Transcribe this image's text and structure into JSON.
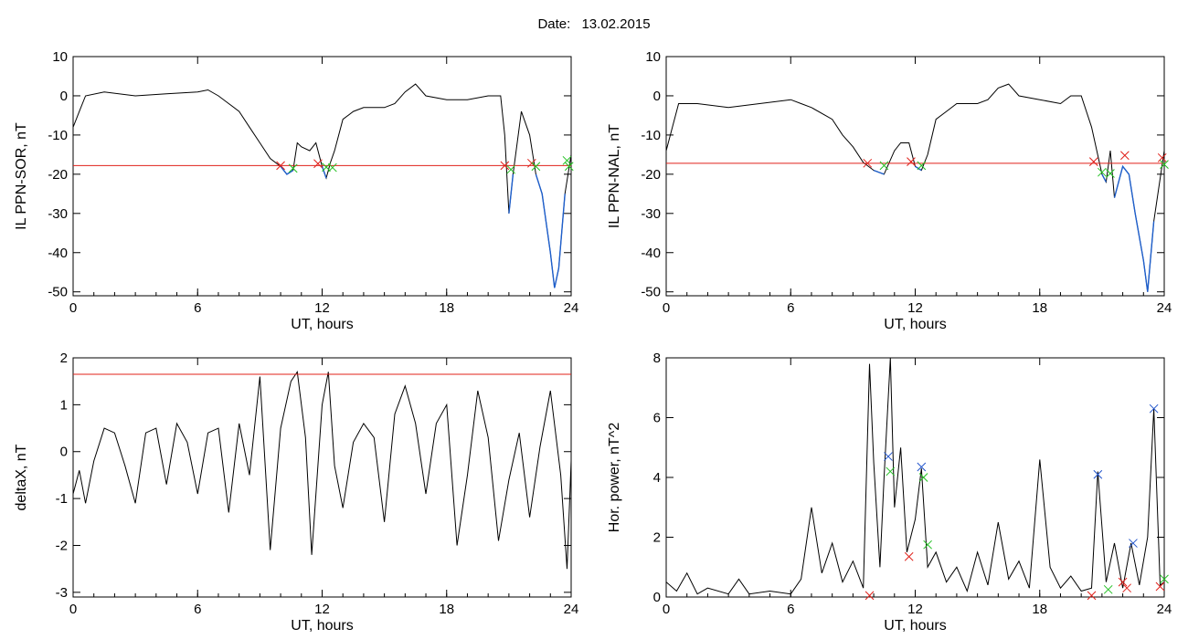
{
  "header": {
    "date_label": "Date:",
    "date_value": "13.02.2015"
  },
  "colors": {
    "line": "#000000",
    "highlight": "#1e5fcc",
    "threshold": "#e0201a",
    "marker_red": "#e0201a",
    "marker_green": "#22c022",
    "marker_blue": "#2255cc"
  },
  "chart_data": [
    {
      "id": "ppn-sor",
      "type": "line",
      "xlabel": "UT, hours",
      "ylabel": "IL PPN-SOR, nT",
      "xlim": [
        0,
        24
      ],
      "ylim": [
        -51,
        10
      ],
      "xticks": [
        0,
        6,
        12,
        18,
        24
      ],
      "yticks": [
        10,
        0,
        -10,
        -20,
        -30,
        -40,
        -50
      ],
      "threshold": -17.8,
      "series": [
        {
          "values": [
            [
              0,
              -8
            ],
            [
              0.3,
              -4
            ],
            [
              0.6,
              0
            ],
            [
              1.5,
              1
            ],
            [
              3,
              0
            ],
            [
              4.5,
              0.5
            ],
            [
              6,
              1
            ],
            [
              6.5,
              1.5
            ],
            [
              7,
              0
            ],
            [
              7.5,
              -2
            ],
            [
              8,
              -4
            ],
            [
              8.5,
              -8
            ],
            [
              9,
              -12
            ],
            [
              9.5,
              -16
            ],
            [
              10,
              -18
            ],
            [
              10.3,
              -20
            ],
            [
              10.6,
              -19
            ],
            [
              10.8,
              -12
            ],
            [
              11,
              -13
            ],
            [
              11.4,
              -14
            ],
            [
              11.7,
              -12
            ],
            [
              12,
              -18
            ],
            [
              12.2,
              -21
            ],
            [
              12.4,
              -17
            ],
            [
              12.6,
              -14
            ],
            [
              13,
              -6
            ],
            [
              13.5,
              -4
            ],
            [
              14,
              -3
            ],
            [
              15,
              -3
            ],
            [
              15.5,
              -2
            ],
            [
              16,
              1
            ],
            [
              16.5,
              3
            ],
            [
              17,
              0
            ],
            [
              18,
              -1
            ],
            [
              19,
              -1
            ],
            [
              20,
              0
            ],
            [
              20.6,
              0
            ],
            [
              20.8,
              -10
            ],
            [
              21,
              -30
            ],
            [
              21.2,
              -20
            ],
            [
              21.6,
              -4
            ],
            [
              22,
              -10
            ],
            [
              22.3,
              -20
            ],
            [
              22.6,
              -25
            ],
            [
              23,
              -40
            ],
            [
              23.2,
              -49
            ],
            [
              23.4,
              -44
            ],
            [
              23.7,
              -25
            ],
            [
              24,
              -15
            ]
          ]
        }
      ],
      "markers": [
        {
          "x": 10.0,
          "y": -17.8,
          "color": "red"
        },
        {
          "x": 10.6,
          "y": -18.5,
          "color": "green"
        },
        {
          "x": 11.8,
          "y": -17.3,
          "color": "red"
        },
        {
          "x": 12.2,
          "y": -18.2,
          "color": "green"
        },
        {
          "x": 12.5,
          "y": -18.3,
          "color": "green"
        },
        {
          "x": 20.8,
          "y": -17.8,
          "color": "red"
        },
        {
          "x": 21.1,
          "y": -18.8,
          "color": "green"
        },
        {
          "x": 22.1,
          "y": -17.2,
          "color": "red"
        },
        {
          "x": 22.3,
          "y": -18.0,
          "color": "green"
        },
        {
          "x": 23.8,
          "y": -16.5,
          "color": "green"
        },
        {
          "x": 23.9,
          "y": -18.0,
          "color": "green"
        }
      ]
    },
    {
      "id": "ppn-nal",
      "type": "line",
      "xlabel": "UT, hours",
      "ylabel": "IL PPN-NAL, nT",
      "xlim": [
        0,
        24
      ],
      "ylim": [
        -51,
        10
      ],
      "xticks": [
        0,
        6,
        12,
        18,
        24
      ],
      "yticks": [
        10,
        0,
        -10,
        -20,
        -30,
        -40,
        -50
      ],
      "threshold": -17.2,
      "series": [
        {
          "values": [
            [
              0,
              -14
            ],
            [
              0.3,
              -8
            ],
            [
              0.6,
              -2
            ],
            [
              1.5,
              -2
            ],
            [
              3,
              -3
            ],
            [
              4.5,
              -2
            ],
            [
              6,
              -1
            ],
            [
              6.5,
              -2
            ],
            [
              7,
              -3
            ],
            [
              8,
              -6
            ],
            [
              8.5,
              -10
            ],
            [
              9,
              -13
            ],
            [
              9.5,
              -17
            ],
            [
              10,
              -19
            ],
            [
              10.5,
              -20
            ],
            [
              11,
              -14
            ],
            [
              11.3,
              -12
            ],
            [
              11.7,
              -12
            ],
            [
              12,
              -18
            ],
            [
              12.3,
              -19
            ],
            [
              12.6,
              -15
            ],
            [
              13,
              -6
            ],
            [
              13.5,
              -4
            ],
            [
              14,
              -2
            ],
            [
              15,
              -2
            ],
            [
              15.5,
              -1
            ],
            [
              16,
              2
            ],
            [
              16.5,
              3
            ],
            [
              17,
              0
            ],
            [
              18,
              -1
            ],
            [
              19,
              -2
            ],
            [
              19.5,
              0
            ],
            [
              20,
              0
            ],
            [
              20.5,
              -8
            ],
            [
              21,
              -20
            ],
            [
              21.2,
              -22
            ],
            [
              21.4,
              -14
            ],
            [
              21.6,
              -26
            ],
            [
              22,
              -18
            ],
            [
              22.3,
              -20
            ],
            [
              22.6,
              -30
            ],
            [
              23,
              -42
            ],
            [
              23.2,
              -50
            ],
            [
              23.5,
              -32
            ],
            [
              24,
              -14
            ]
          ]
        }
      ],
      "markers": [
        {
          "x": 9.7,
          "y": -17.2,
          "color": "red"
        },
        {
          "x": 10.5,
          "y": -17.8,
          "color": "green"
        },
        {
          "x": 11.8,
          "y": -16.8,
          "color": "red"
        },
        {
          "x": 12.3,
          "y": -17.8,
          "color": "green"
        },
        {
          "x": 20.6,
          "y": -16.8,
          "color": "red"
        },
        {
          "x": 21.0,
          "y": -19.5,
          "color": "green"
        },
        {
          "x": 21.4,
          "y": -19.8,
          "color": "green"
        },
        {
          "x": 22.1,
          "y": -15.2,
          "color": "red"
        },
        {
          "x": 23.9,
          "y": -15.8,
          "color": "red"
        },
        {
          "x": 24.0,
          "y": -17.5,
          "color": "green"
        }
      ]
    },
    {
      "id": "deltax",
      "type": "line",
      "xlabel": "UT, hours",
      "ylabel": "deltaX, nT",
      "xlim": [
        0,
        24
      ],
      "ylim": [
        -3.1,
        2.0
      ],
      "xticks": [
        0,
        6,
        12,
        18,
        24
      ],
      "yticks": [
        2,
        1,
        0,
        -1,
        -2,
        -3
      ],
      "threshold": 1.65,
      "series": [
        {
          "values": [
            [
              0,
              -0.9
            ],
            [
              0.3,
              -0.4
            ],
            [
              0.6,
              -1.1
            ],
            [
              1,
              -0.2
            ],
            [
              1.5,
              0.5
            ],
            [
              2,
              0.4
            ],
            [
              2.5,
              -0.3
            ],
            [
              3,
              -1.1
            ],
            [
              3.5,
              0.4
            ],
            [
              4,
              0.5
            ],
            [
              4.5,
              -0.7
            ],
            [
              5,
              0.6
            ],
            [
              5.5,
              0.2
            ],
            [
              6,
              -0.9
            ],
            [
              6.5,
              0.4
            ],
            [
              7,
              0.5
            ],
            [
              7.5,
              -1.3
            ],
            [
              8,
              0.6
            ],
            [
              8.5,
              -0.5
            ],
            [
              9,
              1.6
            ],
            [
              9.5,
              -2.1
            ],
            [
              10,
              0.5
            ],
            [
              10.5,
              1.5
            ],
            [
              10.8,
              1.7
            ],
            [
              11.2,
              0.3
            ],
            [
              11.5,
              -2.2
            ],
            [
              12,
              1.0
            ],
            [
              12.3,
              1.7
            ],
            [
              12.6,
              -0.3
            ],
            [
              13,
              -1.2
            ],
            [
              13.5,
              0.2
            ],
            [
              14,
              0.6
            ],
            [
              14.5,
              0.3
            ],
            [
              15,
              -1.5
            ],
            [
              15.5,
              0.8
            ],
            [
              16,
              1.4
            ],
            [
              16.5,
              0.6
            ],
            [
              17,
              -0.9
            ],
            [
              17.5,
              0.6
            ],
            [
              18,
              1.0
            ],
            [
              18.5,
              -2.0
            ],
            [
              19,
              -0.5
            ],
            [
              19.5,
              1.3
            ],
            [
              20,
              0.3
            ],
            [
              20.5,
              -1.9
            ],
            [
              21,
              -0.6
            ],
            [
              21.5,
              0.4
            ],
            [
              22,
              -1.4
            ],
            [
              22.5,
              0.1
            ],
            [
              23,
              1.3
            ],
            [
              23.5,
              -0.5
            ],
            [
              23.8,
              -2.5
            ],
            [
              24,
              -0.2
            ]
          ]
        }
      ]
    },
    {
      "id": "hor-power",
      "type": "line",
      "xlabel": "UT, hours",
      "ylabel": "Hor. power, nT^2",
      "xlim": [
        0,
        24
      ],
      "ylim": [
        0,
        8
      ],
      "xticks": [
        0,
        6,
        12,
        18,
        24
      ],
      "yticks": [
        0,
        2,
        4,
        6,
        8
      ],
      "series": [
        {
          "values": [
            [
              0,
              0.5
            ],
            [
              0.5,
              0.2
            ],
            [
              1,
              0.8
            ],
            [
              1.5,
              0.1
            ],
            [
              2,
              0.3
            ],
            [
              3,
              0.1
            ],
            [
              3.5,
              0.6
            ],
            [
              4,
              0.1
            ],
            [
              5,
              0.2
            ],
            [
              6,
              0.1
            ],
            [
              6.5,
              0.6
            ],
            [
              7,
              3.0
            ],
            [
              7.5,
              0.8
            ],
            [
              8,
              1.8
            ],
            [
              8.5,
              0.5
            ],
            [
              9,
              1.2
            ],
            [
              9.5,
              0.3
            ],
            [
              9.8,
              7.8
            ],
            [
              10.0,
              4.5
            ],
            [
              10.3,
              1.0
            ],
            [
              10.5,
              4.0
            ],
            [
              10.8,
              8.0
            ],
            [
              11,
              3.0
            ],
            [
              11.3,
              5.0
            ],
            [
              11.6,
              1.5
            ],
            [
              12,
              2.6
            ],
            [
              12.3,
              4.3
            ],
            [
              12.6,
              1.0
            ],
            [
              13,
              1.5
            ],
            [
              13.5,
              0.5
            ],
            [
              14,
              1.0
            ],
            [
              14.5,
              0.2
            ],
            [
              15,
              1.5
            ],
            [
              15.5,
              0.4
            ],
            [
              16,
              2.5
            ],
            [
              16.5,
              0.6
            ],
            [
              17,
              1.2
            ],
            [
              17.5,
              0.3
            ],
            [
              18,
              4.6
            ],
            [
              18.5,
              1.0
            ],
            [
              19,
              0.3
            ],
            [
              19.5,
              0.7
            ],
            [
              20,
              0.2
            ],
            [
              20.5,
              0.3
            ],
            [
              20.8,
              4.2
            ],
            [
              21.2,
              0.5
            ],
            [
              21.6,
              1.8
            ],
            [
              22,
              0.3
            ],
            [
              22.4,
              1.8
            ],
            [
              22.8,
              0.4
            ],
            [
              23.2,
              2.0
            ],
            [
              23.5,
              6.3
            ],
            [
              23.8,
              0.4
            ],
            [
              24,
              0.5
            ]
          ]
        }
      ],
      "markers": [
        {
          "x": 10.7,
          "y": 4.7,
          "color": "blue"
        },
        {
          "x": 10.8,
          "y": 4.2,
          "color": "green"
        },
        {
          "x": 9.8,
          "y": 0.05,
          "color": "red"
        },
        {
          "x": 11.7,
          "y": 1.35,
          "color": "red"
        },
        {
          "x": 12.3,
          "y": 4.35,
          "color": "blue"
        },
        {
          "x": 12.4,
          "y": 4.0,
          "color": "green"
        },
        {
          "x": 12.6,
          "y": 1.75,
          "color": "green"
        },
        {
          "x": 20.8,
          "y": 4.1,
          "color": "blue"
        },
        {
          "x": 20.5,
          "y": 0.05,
          "color": "red"
        },
        {
          "x": 21.3,
          "y": 0.25,
          "color": "green"
        },
        {
          "x": 22.0,
          "y": 0.5,
          "color": "red"
        },
        {
          "x": 22.2,
          "y": 0.3,
          "color": "red"
        },
        {
          "x": 22.5,
          "y": 1.8,
          "color": "blue"
        },
        {
          "x": 23.5,
          "y": 6.3,
          "color": "blue"
        },
        {
          "x": 23.8,
          "y": 0.35,
          "color": "red"
        },
        {
          "x": 24.0,
          "y": 0.6,
          "color": "green"
        }
      ]
    }
  ]
}
